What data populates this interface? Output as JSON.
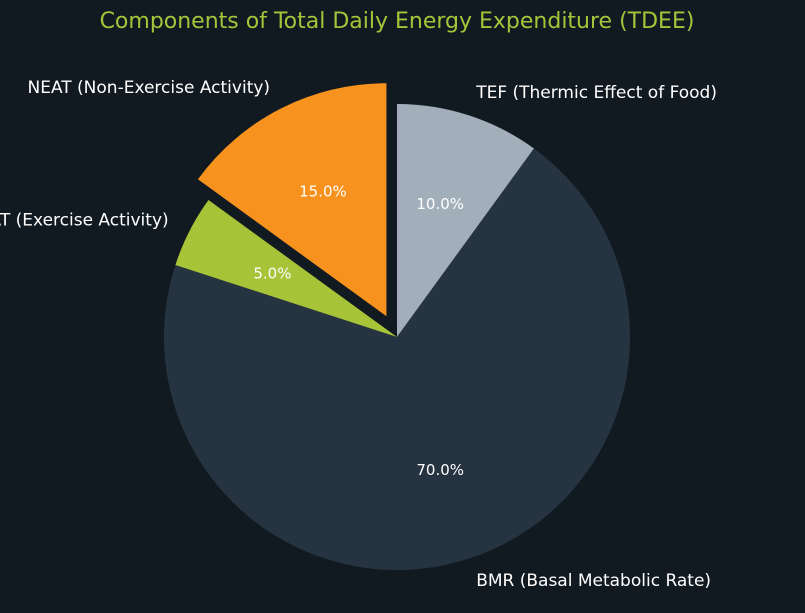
{
  "chart_data": {
    "type": "pie",
    "title": "Components of Total Daily Energy Expenditure (TDEE)",
    "start_angle_deg": 90,
    "direction": "clockwise",
    "slices": [
      {
        "name": "TEF (Thermic Effect of Food)",
        "value": 10.0,
        "pct_label": "10.0%",
        "color": "#a2afbb",
        "exploded": false
      },
      {
        "name": "BMR (Basal Metabolic Rate)",
        "value": 70.0,
        "pct_label": "70.0%",
        "color": "#263441",
        "exploded": false
      },
      {
        "name": "EAT (Exercise Activity)",
        "value": 5.0,
        "pct_label": "5.0%",
        "color": "#a7c439",
        "exploded": false
      },
      {
        "name": "NEAT (Non-Exercise Activity)",
        "value": 15.0,
        "pct_label": "15.0%",
        "color": "#f7921e",
        "exploded": true
      }
    ]
  },
  "colors": {
    "background": "#111a21",
    "title": "#a6c43a",
    "label_text": "#ffffff"
  }
}
